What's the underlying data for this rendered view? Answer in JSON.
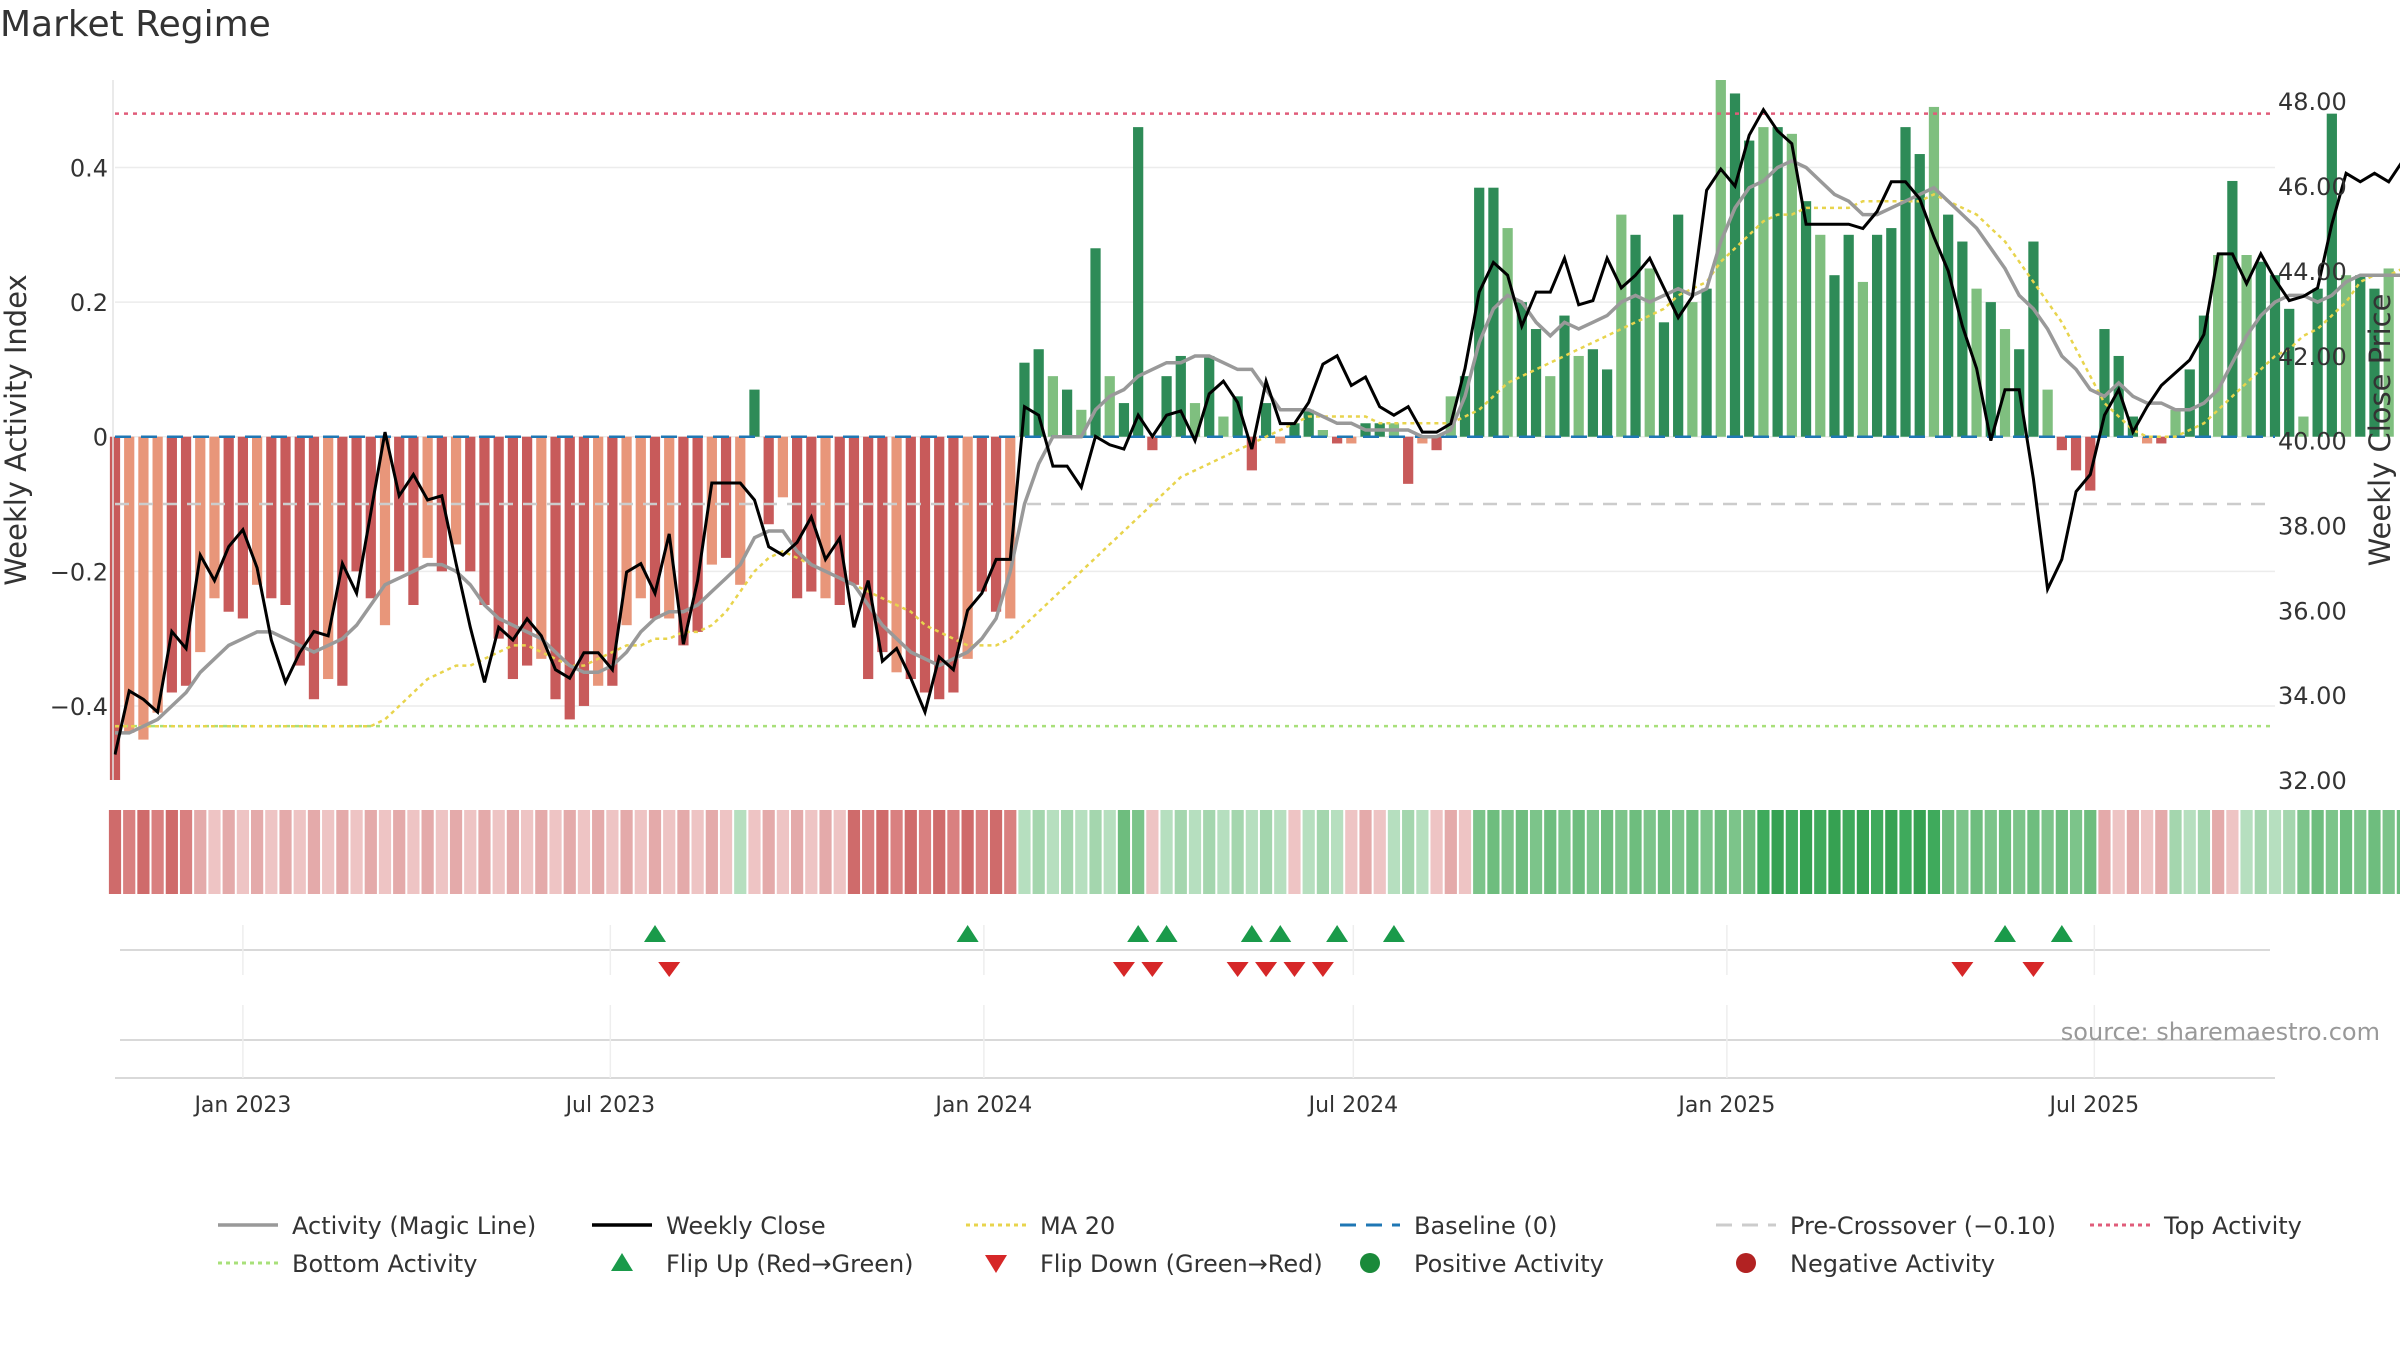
{
  "title": "Market Regime",
  "source": "source: sharemaestro.com",
  "colors": {
    "pos_dark": "#2e8b57",
    "pos_light": "#7fbf7f",
    "neg_dark": "#c85a5a",
    "neg_light": "#e8967a",
    "magic": "#999999",
    "close": "#000000",
    "ma20": "#e8d44d",
    "baseline": "#1f77b4",
    "precross": "#cccccc",
    "top": "#e05c7a",
    "bottom": "#a8e07a",
    "flip_up": "#1a9a4a",
    "flip_down": "#d62728",
    "positive": "#1a8a3a",
    "negative": "#b22222"
  },
  "chart_data": {
    "type": "bar",
    "x_start": "2022-10-30",
    "xlim": [
      "2022-10-30",
      "2025-09-28"
    ],
    "ylabel": "Weekly Activity Index",
    "y2label": "Weekly Close Price",
    "ylim": [
      -0.51,
      0.53
    ],
    "y2lim": [
      32.0,
      48.5
    ],
    "yticks": [
      -0.4,
      -0.2,
      0,
      0.2,
      0.4
    ],
    "ytick_labels": [
      "−0.4",
      "−0.2",
      "0",
      "0.2",
      "0.4"
    ],
    "y2ticks": [
      32,
      34,
      36,
      38,
      40,
      42,
      44,
      46,
      48
    ],
    "y2tick_labels": [
      "32.00",
      "34.00",
      "36.00",
      "38.00",
      "40.00",
      "42.00",
      "44.00",
      "46.00",
      "48.00"
    ],
    "xtick_dates": [
      "2023-01-01",
      "2023-07-01",
      "2024-01-01",
      "2024-07-01",
      "2025-01-01",
      "2025-07-01"
    ],
    "xtick_labels": [
      "Jan 2023",
      "Jul 2023",
      "Jan 2024",
      "Jul 2024",
      "Jan 2025",
      "Jul 2025"
    ],
    "reference_lines": {
      "baseline": 0,
      "pre_crossover": -0.1,
      "top_activity": 0.48,
      "bottom_activity": -0.43
    },
    "activity": [
      -0.51,
      -0.44,
      -0.45,
      -0.41,
      -0.38,
      -0.37,
      -0.32,
      -0.24,
      -0.26,
      -0.27,
      -0.22,
      -0.24,
      -0.25,
      -0.34,
      -0.39,
      -0.36,
      -0.37,
      -0.2,
      -0.24,
      -0.28,
      -0.2,
      -0.25,
      -0.18,
      -0.2,
      -0.16,
      -0.2,
      -0.25,
      -0.3,
      -0.36,
      -0.34,
      -0.33,
      -0.39,
      -0.42,
      -0.4,
      -0.37,
      -0.37,
      -0.28,
      -0.24,
      -0.27,
      -0.27,
      -0.31,
      -0.29,
      -0.19,
      -0.18,
      -0.22,
      0.07,
      -0.13,
      -0.09,
      -0.24,
      -0.23,
      -0.24,
      -0.25,
      -0.22,
      -0.36,
      -0.32,
      -0.35,
      -0.36,
      -0.38,
      -0.39,
      -0.38,
      -0.33,
      -0.23,
      -0.26,
      -0.27,
      0.11,
      0.13,
      0.09,
      0.07,
      0.04,
      0.28,
      0.09,
      0.05,
      0.46,
      -0.02,
      0.09,
      0.12,
      0.05,
      0.12,
      0.03,
      0.06,
      -0.05,
      0.05,
      -0.01,
      0.02,
      0.04,
      0.01,
      -0.01,
      -0.01,
      0.02,
      0.02,
      0.02,
      -0.07,
      -0.01,
      -0.02,
      0.06,
      0.09,
      0.37,
      0.37,
      0.31,
      0.2,
      0.16,
      0.09,
      0.18,
      0.12,
      0.13,
      0.1,
      0.33,
      0.3,
      0.25,
      0.17,
      0.33,
      0.2,
      0.22,
      0.53,
      0.51,
      0.44,
      0.46,
      0.46,
      0.45,
      0.35,
      0.3,
      0.24,
      0.3,
      0.23,
      0.3,
      0.31,
      0.46,
      0.42,
      0.49,
      0.33,
      0.29,
      0.22,
      0.2,
      0.16,
      0.13,
      0.29,
      0.07,
      -0.02,
      -0.05,
      -0.08,
      0.16,
      0.12,
      0.03,
      -0.01,
      -0.01,
      0.04,
      0.1,
      0.18,
      0.27,
      0.38,
      0.27,
      0.26,
      0.24,
      0.19,
      0.03,
      0.22,
      0.48,
      0.24,
      0.24,
      0.22,
      0.25
    ],
    "activity_dark_flags": [
      1,
      0,
      0,
      0,
      1,
      1,
      0,
      0,
      1,
      1,
      0,
      1,
      1,
      1,
      1,
      0,
      1,
      1,
      1,
      0,
      1,
      1,
      0,
      1,
      0,
      1,
      1,
      1,
      1,
      1,
      0,
      1,
      1,
      1,
      0,
      1,
      0,
      0,
      1,
      0,
      1,
      1,
      0,
      1,
      0,
      1,
      1,
      0,
      1,
      1,
      0,
      1,
      1,
      1,
      1,
      0,
      1,
      1,
      1,
      1,
      0,
      1,
      1,
      0,
      1,
      1,
      0,
      1,
      0,
      1,
      0,
      1,
      1,
      1,
      1,
      1,
      0,
      1,
      0,
      1,
      1,
      1,
      0,
      1,
      1,
      0,
      1,
      0,
      1,
      1,
      0,
      1,
      0,
      1,
      0,
      1,
      1,
      1,
      0,
      1,
      1,
      0,
      1,
      0,
      1,
      1,
      0,
      1,
      0,
      1,
      1,
      0,
      1,
      0,
      1,
      1,
      0,
      1,
      0,
      1,
      0,
      1,
      1,
      0,
      1,
      1,
      1,
      1,
      0,
      1,
      1,
      0,
      1,
      0,
      1,
      1,
      0,
      1,
      1,
      1,
      1,
      1,
      1,
      0,
      1,
      0,
      1,
      1,
      0,
      1,
      0,
      1,
      1,
      1,
      0,
      1,
      1,
      0,
      1,
      1,
      0,
      1
    ],
    "magic_line": [
      -0.44,
      -0.44,
      -0.43,
      -0.42,
      -0.4,
      -0.38,
      -0.35,
      -0.33,
      -0.31,
      -0.3,
      -0.29,
      -0.29,
      -0.3,
      -0.31,
      -0.32,
      -0.31,
      -0.3,
      -0.28,
      -0.25,
      -0.22,
      -0.21,
      -0.2,
      -0.19,
      -0.19,
      -0.2,
      -0.22,
      -0.25,
      -0.27,
      -0.28,
      -0.29,
      -0.3,
      -0.32,
      -0.34,
      -0.35,
      -0.35,
      -0.34,
      -0.32,
      -0.29,
      -0.27,
      -0.26,
      -0.26,
      -0.25,
      -0.23,
      -0.21,
      -0.19,
      -0.15,
      -0.14,
      -0.14,
      -0.17,
      -0.19,
      -0.2,
      -0.21,
      -0.22,
      -0.25,
      -0.28,
      -0.3,
      -0.32,
      -0.33,
      -0.34,
      -0.33,
      -0.32,
      -0.3,
      -0.27,
      -0.2,
      -0.1,
      -0.04,
      0.0,
      0.0,
      -0.0,
      0.04,
      0.06,
      0.07,
      0.09,
      0.1,
      0.11,
      0.11,
      0.12,
      0.12,
      0.11,
      0.1,
      0.1,
      0.07,
      0.04,
      0.04,
      0.04,
      0.03,
      0.02,
      0.02,
      0.01,
      0.01,
      0.01,
      0.01,
      0.0,
      0.0,
      0.01,
      0.06,
      0.14,
      0.19,
      0.21,
      0.2,
      0.17,
      0.15,
      0.17,
      0.16,
      0.17,
      0.18,
      0.2,
      0.21,
      0.2,
      0.21,
      0.22,
      0.21,
      0.22,
      0.29,
      0.34,
      0.37,
      0.38,
      0.4,
      0.41,
      0.4,
      0.38,
      0.36,
      0.35,
      0.33,
      0.33,
      0.34,
      0.35,
      0.36,
      0.37,
      0.35,
      0.33,
      0.31,
      0.28,
      0.25,
      0.21,
      0.19,
      0.16,
      0.12,
      0.1,
      0.07,
      0.06,
      0.08,
      0.06,
      0.05,
      0.05,
      0.04,
      0.04,
      0.05,
      0.07,
      0.11,
      0.15,
      0.18,
      0.2,
      0.21,
      0.21,
      0.2,
      0.21,
      0.23,
      0.24,
      0.24,
      0.24,
      0.24,
      0.24
    ],
    "weekly_close": [
      32.6,
      34.1,
      33.9,
      33.6,
      35.5,
      35.1,
      37.3,
      36.7,
      37.5,
      37.9,
      37.0,
      35.3,
      34.3,
      35.0,
      35.5,
      35.4,
      37.1,
      36.4,
      38.3,
      40.2,
      38.7,
      39.2,
      38.6,
      38.7,
      37.1,
      35.6,
      34.3,
      35.6,
      35.3,
      35.8,
      35.4,
      34.6,
      34.4,
      35.0,
      35.0,
      34.6,
      36.9,
      37.1,
      36.4,
      37.8,
      35.2,
      36.7,
      39.0,
      39.0,
      39.0,
      38.6,
      37.5,
      37.3,
      37.6,
      38.2,
      37.2,
      37.7,
      35.6,
      36.7,
      34.8,
      35.1,
      34.4,
      33.6,
      34.9,
      34.6,
      36.0,
      36.4,
      37.2,
      37.2,
      40.8,
      40.6,
      39.4,
      39.4,
      38.9,
      40.1,
      39.9,
      39.8,
      40.6,
      40.1,
      40.6,
      40.7,
      40.0,
      41.1,
      41.4,
      40.9,
      39.8,
      41.4,
      40.4,
      40.4,
      40.9,
      41.8,
      42.0,
      41.3,
      41.5,
      40.8,
      40.6,
      40.8,
      40.2,
      40.2,
      40.4,
      41.7,
      43.5,
      44.2,
      43.9,
      42.7,
      43.5,
      43.5,
      44.3,
      43.2,
      43.3,
      44.3,
      43.6,
      43.9,
      44.3,
      43.6,
      42.9,
      43.4,
      45.9,
      46.4,
      46.0,
      47.2,
      47.8,
      47.3,
      47.0,
      45.1,
      45.1,
      45.1,
      45.1,
      45.0,
      45.4,
      46.1,
      46.1,
      45.7,
      44.8,
      44.0,
      42.7,
      41.7,
      40.0,
      41.2,
      41.2,
      39.1,
      36.5,
      37.2,
      38.8,
      39.2,
      40.6,
      41.2,
      40.2,
      40.8,
      41.3,
      41.6,
      41.9,
      42.5,
      44.4,
      44.4,
      43.7,
      44.4,
      43.8,
      43.3,
      43.4,
      43.6,
      45.1,
      46.3,
      46.1,
      46.3,
      46.1,
      46.6
    ],
    "ma20": [
      -0.43,
      -0.43,
      -0.43,
      -0.43,
      -0.43,
      -0.43,
      -0.43,
      -0.43,
      -0.43,
      -0.43,
      -0.43,
      -0.43,
      -0.43,
      -0.43,
      -0.43,
      -0.43,
      -0.43,
      -0.43,
      -0.43,
      -0.42,
      -0.4,
      -0.38,
      -0.36,
      -0.35,
      -0.34,
      -0.34,
      -0.33,
      -0.32,
      -0.31,
      -0.31,
      -0.32,
      -0.33,
      -0.34,
      -0.34,
      -0.33,
      -0.32,
      -0.31,
      -0.31,
      -0.3,
      -0.3,
      -0.29,
      -0.29,
      -0.28,
      -0.26,
      -0.23,
      -0.2,
      -0.18,
      -0.17,
      -0.18,
      -0.19,
      -0.2,
      -0.21,
      -0.22,
      -0.23,
      -0.24,
      -0.25,
      -0.26,
      -0.28,
      -0.29,
      -0.3,
      -0.31,
      -0.31,
      -0.31,
      -0.3,
      -0.28,
      -0.26,
      -0.24,
      -0.22,
      -0.2,
      -0.18,
      -0.16,
      -0.14,
      -0.12,
      -0.1,
      -0.08,
      -0.06,
      -0.05,
      -0.04,
      -0.03,
      -0.02,
      -0.01,
      -0.0,
      0.01,
      0.02,
      0.03,
      0.03,
      0.03,
      0.03,
      0.03,
      0.02,
      0.02,
      0.02,
      0.02,
      0.02,
      0.02,
      0.03,
      0.04,
      0.06,
      0.08,
      0.09,
      0.1,
      0.11,
      0.12,
      0.13,
      0.14,
      0.15,
      0.16,
      0.17,
      0.18,
      0.19,
      0.21,
      0.22,
      0.23,
      0.26,
      0.28,
      0.3,
      0.32,
      0.33,
      0.33,
      0.34,
      0.34,
      0.34,
      0.34,
      0.35,
      0.35,
      0.35,
      0.35,
      0.35,
      0.36,
      0.35,
      0.34,
      0.33,
      0.31,
      0.29,
      0.26,
      0.23,
      0.2,
      0.17,
      0.13,
      0.09,
      0.05,
      0.03,
      0.01,
      0.0,
      0.0,
      0.0,
      0.01,
      0.02,
      0.04,
      0.06,
      0.08,
      0.1,
      0.12,
      0.13,
      0.15,
      0.16,
      0.18,
      0.2,
      0.23,
      0.24,
      0.24,
      0.25,
      0.26,
      0.26
    ],
    "regime_strip": [
      -2,
      -2,
      -2,
      -2,
      -2,
      -2,
      -1,
      -1,
      -1,
      -1,
      -1,
      -1,
      -1,
      -1,
      -1,
      -1,
      -1,
      -1,
      -1,
      -1,
      -1,
      -1,
      -1,
      -1,
      -1,
      -1,
      -1,
      -1,
      -1,
      -1,
      -1,
      -1,
      -1,
      -1,
      -1,
      -1,
      -1,
      -1,
      -1,
      -1,
      -1,
      -1,
      -1,
      -1,
      1,
      -1,
      -1,
      -1,
      -1,
      -1,
      -1,
      -1,
      -2,
      -2,
      -2,
      -2,
      -2,
      -2,
      -2,
      -2,
      -2,
      -2,
      -2,
      -2,
      1,
      1,
      1,
      1,
      1,
      1,
      1,
      2,
      2,
      -1,
      1,
      1,
      1,
      1,
      1,
      1,
      1,
      1,
      1,
      -1,
      1,
      1,
      1,
      -1,
      -1,
      -1,
      1,
      1,
      1,
      -1,
      -1,
      -1,
      2,
      2,
      2,
      2,
      2,
      2,
      2,
      2,
      2,
      2,
      2,
      2,
      2,
      2,
      2,
      2,
      2,
      2,
      2,
      2,
      3,
      3,
      3,
      3,
      3,
      3,
      3,
      3,
      3,
      3,
      3,
      3,
      3,
      2,
      2,
      2,
      2,
      2,
      2,
      2,
      2,
      2,
      2,
      2,
      -1,
      -1,
      -1,
      -1,
      -1,
      1,
      1,
      1,
      -1,
      -1,
      1,
      1,
      1,
      1,
      2,
      2,
      2,
      2,
      2,
      2,
      2,
      2,
      2,
      2,
      2,
      3,
      3,
      2,
      2,
      2,
      2
    ],
    "flip_up_dates": [
      "2023-07-23",
      "2023-12-24",
      "2024-03-17",
      "2024-03-31",
      "2024-05-12",
      "2024-05-26",
      "2024-06-23",
      "2024-07-21",
      "2025-05-18",
      "2025-06-15"
    ],
    "flip_down_dates": [
      "2023-07-30",
      "2024-03-10",
      "2024-03-24",
      "2024-05-05",
      "2024-05-19",
      "2024-06-02",
      "2024-06-16",
      "2025-04-27",
      "2025-06-01"
    ],
    "legend": [
      {
        "label": "Activity (Magic Line)",
        "kind": "line",
        "color": "#999999"
      },
      {
        "label": "Weekly Close",
        "kind": "line",
        "color": "#000000"
      },
      {
        "label": "MA 20",
        "kind": "dotted",
        "color": "#e8d44d"
      },
      {
        "label": "Baseline (0)",
        "kind": "dashed",
        "color": "#1f77b4"
      },
      {
        "label": "Pre-Crossover (−0.10)",
        "kind": "dashed",
        "color": "#cccccc"
      },
      {
        "label": "Top Activity",
        "kind": "dotted",
        "color": "#e05c7a"
      },
      {
        "label": "Bottom Activity",
        "kind": "dotted",
        "color": "#a8e07a"
      },
      {
        "label": "Flip Up (Red→Green)",
        "kind": "tri-up",
        "color": "#1a9a4a"
      },
      {
        "label": "Flip Down (Green→Red)",
        "kind": "tri-down",
        "color": "#d62728"
      },
      {
        "label": "Positive Activity",
        "kind": "dot",
        "color": "#1a8a3a"
      },
      {
        "label": "Negative Activity",
        "kind": "dot",
        "color": "#b22222"
      }
    ]
  }
}
